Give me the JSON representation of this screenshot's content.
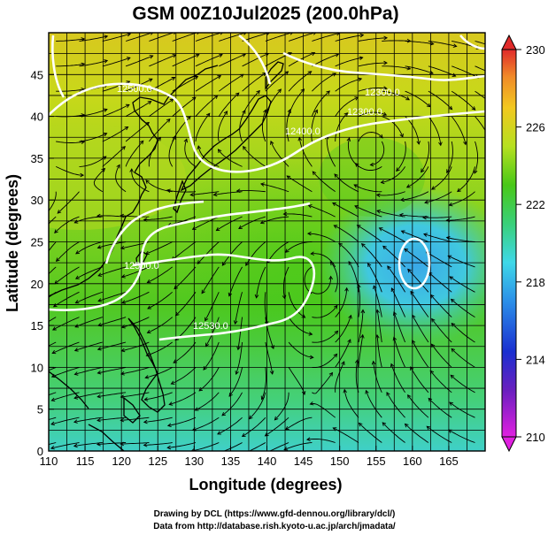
{
  "title": "GSM 00Z10Jul2025 (200.0hPa)",
  "xlabel": "Longitude (degrees)",
  "ylabel": "Latitude  (degrees)",
  "x_ticks": [
    "110",
    "115",
    "120",
    "125",
    "130",
    "135",
    "140",
    "145",
    "150",
    "155",
    "160",
    "165"
  ],
  "y_ticks": [
    "0",
    "5",
    "10",
    "15",
    "20",
    "25",
    "30",
    "35",
    "40",
    "45"
  ],
  "colorbar_ticks": [
    "210",
    "214",
    "218",
    "222",
    "226",
    "230"
  ],
  "contour_labels": [
    "12500.0",
    "12500.0",
    "12530.0",
    "12400.0",
    "12300.0",
    "12300.0"
  ],
  "credits": [
    "Drawing by DCL (https://www.gfd-dennou.org/library/dcl/)",
    "Data from http://database.rish.kyoto-u.ac.jp/arch/jmadata/"
  ],
  "colors": {
    "warm": "#e8502a",
    "mid": "#8fd02a",
    "cool": "#3fbfe8",
    "contour": "#ffffff",
    "streamline": "#000000"
  },
  "chart_data": {
    "type": "heatmap",
    "variable": "temperature with geopotential height contours and wind streamlines",
    "level": "200.0hPa",
    "valid_time": "00Z10Jul2025",
    "xlim": [
      110,
      170
    ],
    "ylim": [
      0,
      50
    ],
    "colorbar_range": [
      210,
      230
    ],
    "contour_levels": [
      12300,
      12400,
      12500,
      12530
    ],
    "features": [
      {
        "kind": "warm-max",
        "lon": 111,
        "lat": 46
      },
      {
        "kind": "warm-max",
        "lon": 158,
        "lat": 48
      },
      {
        "kind": "cool-min",
        "lon": 159,
        "lat": 25
      },
      {
        "kind": "anticyclone",
        "lon": 154,
        "lat": 36
      },
      {
        "kind": "cyclone",
        "lon": 147,
        "lat": 21
      }
    ]
  }
}
